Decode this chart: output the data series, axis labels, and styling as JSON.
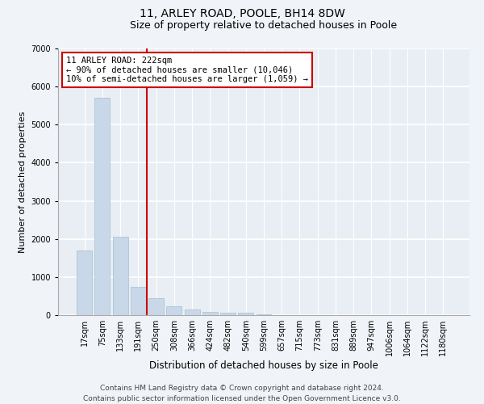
{
  "title": "11, ARLEY ROAD, POOLE, BH14 8DW",
  "subtitle": "Size of property relative to detached houses in Poole",
  "xlabel": "Distribution of detached houses by size in Poole",
  "ylabel": "Number of detached properties",
  "bar_color": "#c8d8e8",
  "bar_edgecolor": "#a8bece",
  "vline_color": "#cc0000",
  "annotation_line1": "11 ARLEY ROAD: 222sqm",
  "annotation_line2": "← 90% of detached houses are smaller (10,046)",
  "annotation_line3": "10% of semi-detached houses are larger (1,059) →",
  "annotation_box_color": "#cc0000",
  "footer_line1": "Contains HM Land Registry data © Crown copyright and database right 2024.",
  "footer_line2": "Contains public sector information licensed under the Open Government Licence v3.0.",
  "categories": [
    "17sqm",
    "75sqm",
    "133sqm",
    "191sqm",
    "250sqm",
    "308sqm",
    "366sqm",
    "424sqm",
    "482sqm",
    "540sqm",
    "599sqm",
    "657sqm",
    "715sqm",
    "773sqm",
    "831sqm",
    "889sqm",
    "947sqm",
    "1006sqm",
    "1064sqm",
    "1122sqm",
    "1180sqm"
  ],
  "values": [
    1700,
    5700,
    2050,
    750,
    450,
    230,
    150,
    90,
    65,
    55,
    25,
    10,
    5,
    2,
    1,
    1,
    0,
    0,
    0,
    0,
    0
  ],
  "ylim": [
    0,
    7000
  ],
  "yticks": [
    0,
    1000,
    2000,
    3000,
    4000,
    5000,
    6000,
    7000
  ],
  "background_color": "#f0f4f8",
  "plot_background": "#e8eef4",
  "grid_color": "#ffffff",
  "title_fontsize": 10,
  "subtitle_fontsize": 9,
  "xlabel_fontsize": 8.5,
  "ylabel_fontsize": 8,
  "tick_fontsize": 7,
  "footer_fontsize": 6.5,
  "ann_fontsize": 7.5
}
